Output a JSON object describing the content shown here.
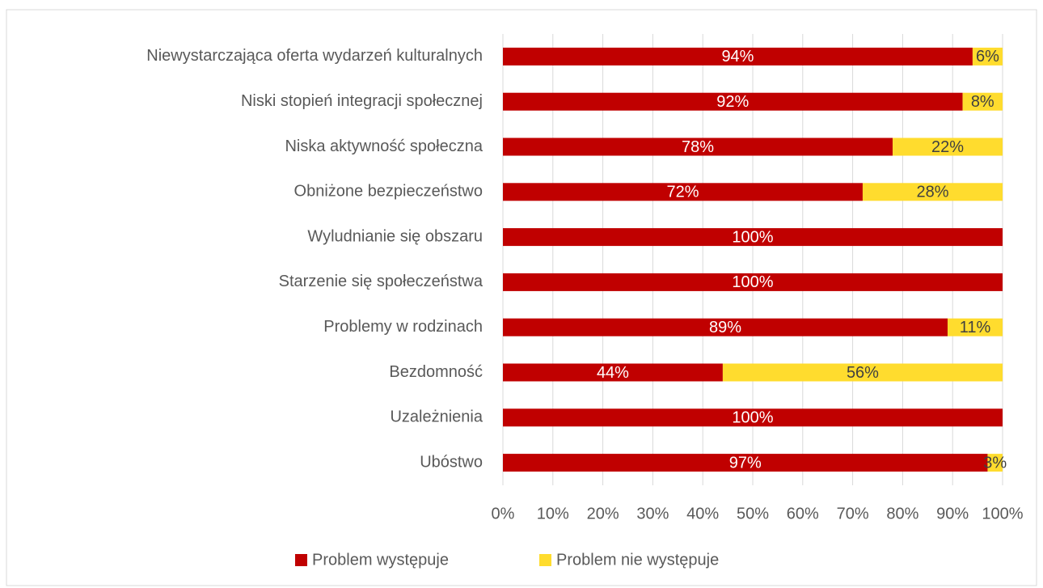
{
  "chart_data": {
    "type": "stacked_bar_horizontal",
    "categories": [
      "Niewystarczająca oferta wydarzeń kulturalnych",
      "Niski stopień integracji społecznej",
      "Niska aktywność społeczna",
      "Obniżone bezpieczeństwo",
      "Wyludnianie się obszaru",
      "Starzenie się społeczeństwa",
      "Problemy w rodzinach",
      "Bezdomność",
      "Uzależnienia",
      "Ubóstwo"
    ],
    "series": [
      {
        "name": "Problem występuje",
        "color": "#C00000",
        "label_color": "#ffffff",
        "values": [
          94,
          92,
          78,
          72,
          100,
          100,
          89,
          44,
          100,
          97
        ],
        "value_labels": [
          "94%",
          "92%",
          "78%",
          "72%",
          "100%",
          "100%",
          "89%",
          "44%",
          "100%",
          "97%"
        ]
      },
      {
        "name": "Problem nie występuje",
        "color": "#FFDC2E",
        "label_color": "#404040",
        "values": [
          6,
          8,
          22,
          28,
          0,
          0,
          11,
          56,
          0,
          3
        ],
        "value_labels": [
          "6%",
          "8%",
          "22%",
          "28%",
          null,
          null,
          "11%",
          "56%",
          null,
          "3%"
        ]
      }
    ],
    "xlim": [
      0,
      100
    ],
    "xticks": [
      {
        "value": 0,
        "label": "0%"
      },
      {
        "value": 10,
        "label": "10%"
      },
      {
        "value": 20,
        "label": "20%"
      },
      {
        "value": 30,
        "label": "30%"
      },
      {
        "value": 40,
        "label": "40%"
      },
      {
        "value": 50,
        "label": "50%"
      },
      {
        "value": 60,
        "label": "60%"
      },
      {
        "value": 70,
        "label": "70%"
      },
      {
        "value": 80,
        "label": "80%"
      },
      {
        "value": 90,
        "label": "90%"
      },
      {
        "value": 100,
        "label": "100%"
      }
    ],
    "grid": true,
    "legend": "bottom"
  }
}
